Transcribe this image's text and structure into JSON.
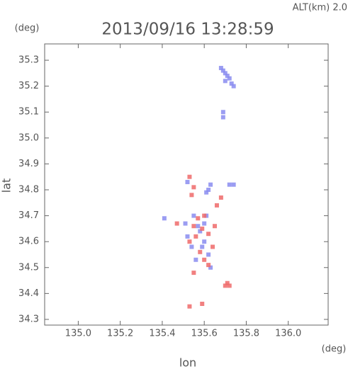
{
  "chart_data": {
    "type": "scatter",
    "annotation": "ALT(km) 2.0",
    "title": "2013/09/16 13:28:59",
    "y_unit": "(deg)",
    "x_unit": "(deg)",
    "ylabel": "lat",
    "xlabel": "lon",
    "xlim": [
      134.84,
      136.19
    ],
    "ylim": [
      34.278,
      35.363
    ],
    "xticks": [
      {
        "value": 135,
        "label": "135.0"
      },
      135.2,
      135.4,
      135.6,
      135.8,
      {
        "value": 136,
        "label": "136.0"
      }
    ],
    "yticks": [
      34.3,
      34.4,
      34.5,
      34.6,
      34.7,
      34.8,
      34.9,
      {
        "value": 35,
        "label": "35.0"
      },
      35.1,
      35.2,
      35.3
    ],
    "series": [
      {
        "color": "#8a8cf0",
        "x": [
          135.69,
          135.7,
          135.71,
          135.72,
          135.7,
          135.73,
          135.74,
          135.68,
          135.69,
          135.69,
          135.52,
          135.62,
          135.63,
          135.61,
          135.72,
          135.74,
          135.55,
          135.57,
          135.52,
          135.6,
          135.62,
          135.54,
          135.58,
          135.61,
          135.56,
          135.63,
          135.6,
          135.51,
          135.41,
          135.59
        ],
        "y": [
          35.26,
          35.25,
          35.24,
          35.23,
          35.22,
          35.21,
          35.2,
          35.27,
          35.1,
          35.08,
          34.83,
          34.8,
          34.82,
          34.79,
          34.82,
          34.82,
          34.7,
          34.66,
          34.62,
          34.6,
          34.55,
          34.58,
          34.64,
          34.7,
          34.53,
          34.5,
          34.67,
          34.67,
          34.69,
          34.58
        ]
      },
      {
        "color": "#ee6a6a",
        "x": [
          135.71,
          135.72,
          135.7,
          135.53,
          135.55,
          135.54,
          135.68,
          135.66,
          135.57,
          135.55,
          135.59,
          135.62,
          135.53,
          135.56,
          135.64,
          135.58,
          135.6,
          135.62,
          135.55,
          135.59,
          135.53,
          135.47,
          135.6,
          135.65
        ],
        "y": [
          34.44,
          34.43,
          34.43,
          34.85,
          34.81,
          34.78,
          34.77,
          34.74,
          34.69,
          34.66,
          34.65,
          34.63,
          34.6,
          34.62,
          34.58,
          34.56,
          34.53,
          34.51,
          34.48,
          34.36,
          34.35,
          34.67,
          34.7,
          34.66
        ]
      }
    ]
  }
}
